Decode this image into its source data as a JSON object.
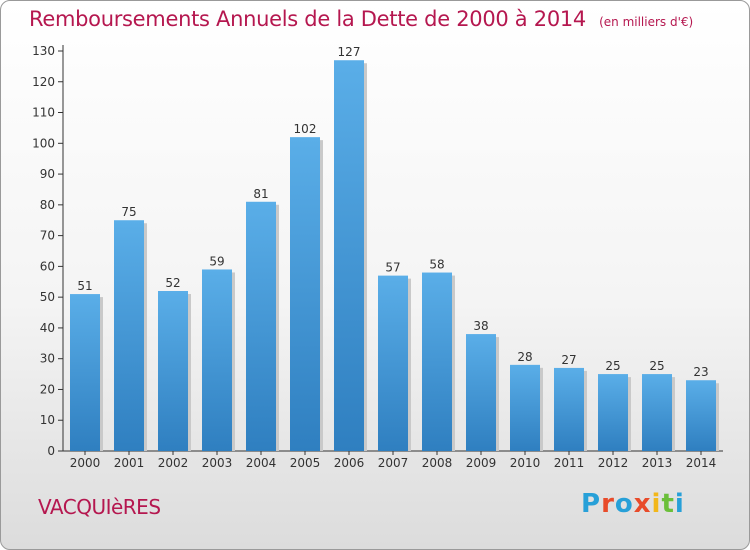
{
  "header": {
    "title": "Remboursements Annuels de la Dette de 2000 à 2014",
    "unit": "(en milliers d'€)"
  },
  "footer": {
    "commune": "VACQUIèRES",
    "logo_letters": [
      "P",
      "r",
      "o",
      "x",
      "i",
      "t",
      "i"
    ],
    "logo_colors": [
      "#27a0d8",
      "#e84b2a",
      "#27a0d8",
      "#e84b2a",
      "#f2b71a",
      "#6bbf3a",
      "#27a0d8"
    ]
  },
  "colors": {
    "bar": "#3a92d4",
    "bar_light": "#6fb6ea",
    "title": "#b5174f"
  },
  "chart_data": {
    "type": "bar",
    "title": "Remboursements Annuels de la Dette de 2000 à 2014",
    "categories": [
      "2000",
      "2001",
      "2002",
      "2003",
      "2004",
      "2005",
      "2006",
      "2007",
      "2008",
      "2009",
      "2010",
      "2011",
      "2012",
      "2013",
      "2014"
    ],
    "values": [
      51,
      75,
      52,
      59,
      81,
      102,
      127,
      57,
      58,
      38,
      28,
      27,
      25,
      25,
      23
    ],
    "ylim": [
      0,
      130
    ],
    "yticks": [
      0,
      10,
      20,
      30,
      40,
      50,
      60,
      70,
      80,
      90,
      100,
      110,
      120,
      130
    ],
    "grid": false,
    "data_labels": true
  }
}
